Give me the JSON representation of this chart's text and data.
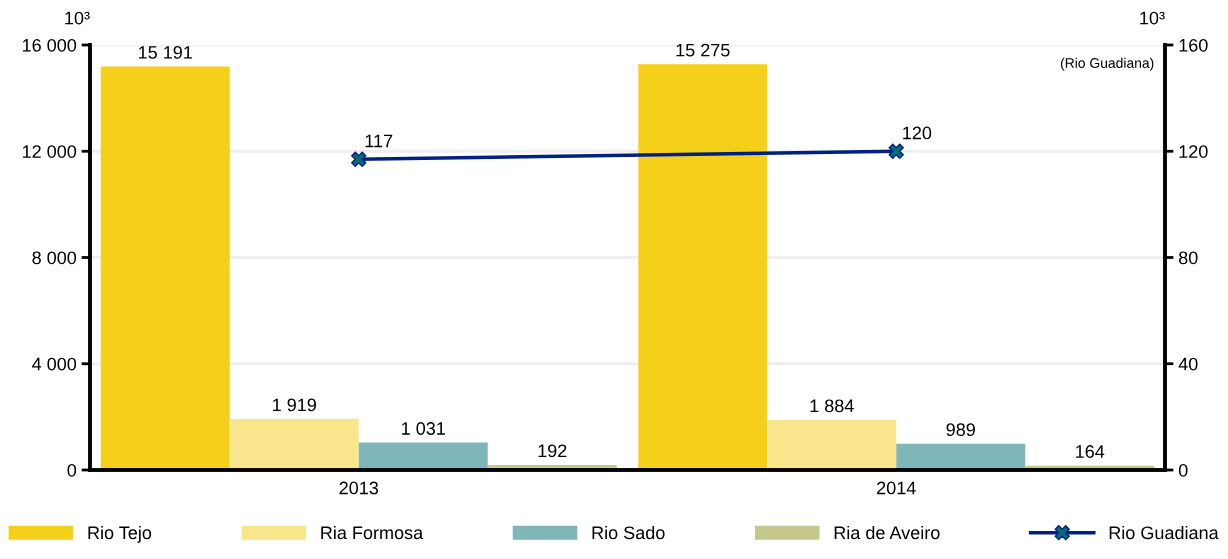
{
  "chart_data": {
    "type": "bar",
    "categories": [
      "2013",
      "2014"
    ],
    "ylabel": "10³",
    "y2label": "10³",
    "series": [
      {
        "name": "Rio Tejo",
        "color": "#f5d01a",
        "values": [
          15191,
          15275
        ],
        "value_labels": [
          "15 191",
          "15 275"
        ]
      },
      {
        "name": "Ria Formosa",
        "color": "#f9e68c",
        "values": [
          1919,
          1884
        ],
        "value_labels": [
          "1 919",
          "1 884"
        ]
      },
      {
        "name": "Rio Sado",
        "color": "#7fb7b8",
        "values": [
          1031,
          989
        ],
        "value_labels": [
          "1 031",
          "989"
        ]
      },
      {
        "name": "Ria de Aveiro",
        "color": "#c4c88a",
        "values": [
          192,
          164
        ],
        "value_labels": [
          "192",
          "164"
        ]
      },
      {
        "name": "Rio Guadiana",
        "type": "line",
        "axis": "y2",
        "color": "#00207f",
        "marker": "cross",
        "values": [
          117,
          120
        ],
        "value_labels": [
          "117",
          "120"
        ]
      }
    ],
    "ylim": [
      0,
      16000
    ],
    "yticks": [
      0,
      {
        "value": 4000,
        "label": "4 000"
      },
      {
        "value": 8000,
        "label": "8 000"
      },
      {
        "value": 12000,
        "label": "12 000"
      },
      {
        "value": 16000,
        "label": "16 000"
      }
    ],
    "y2lim": [
      0,
      160
    ],
    "y2ticks": [
      0,
      40,
      80,
      120,
      160
    ],
    "annotations": [
      "(Rio Guadiana)"
    ],
    "grid": "y",
    "legend": "bottom"
  }
}
